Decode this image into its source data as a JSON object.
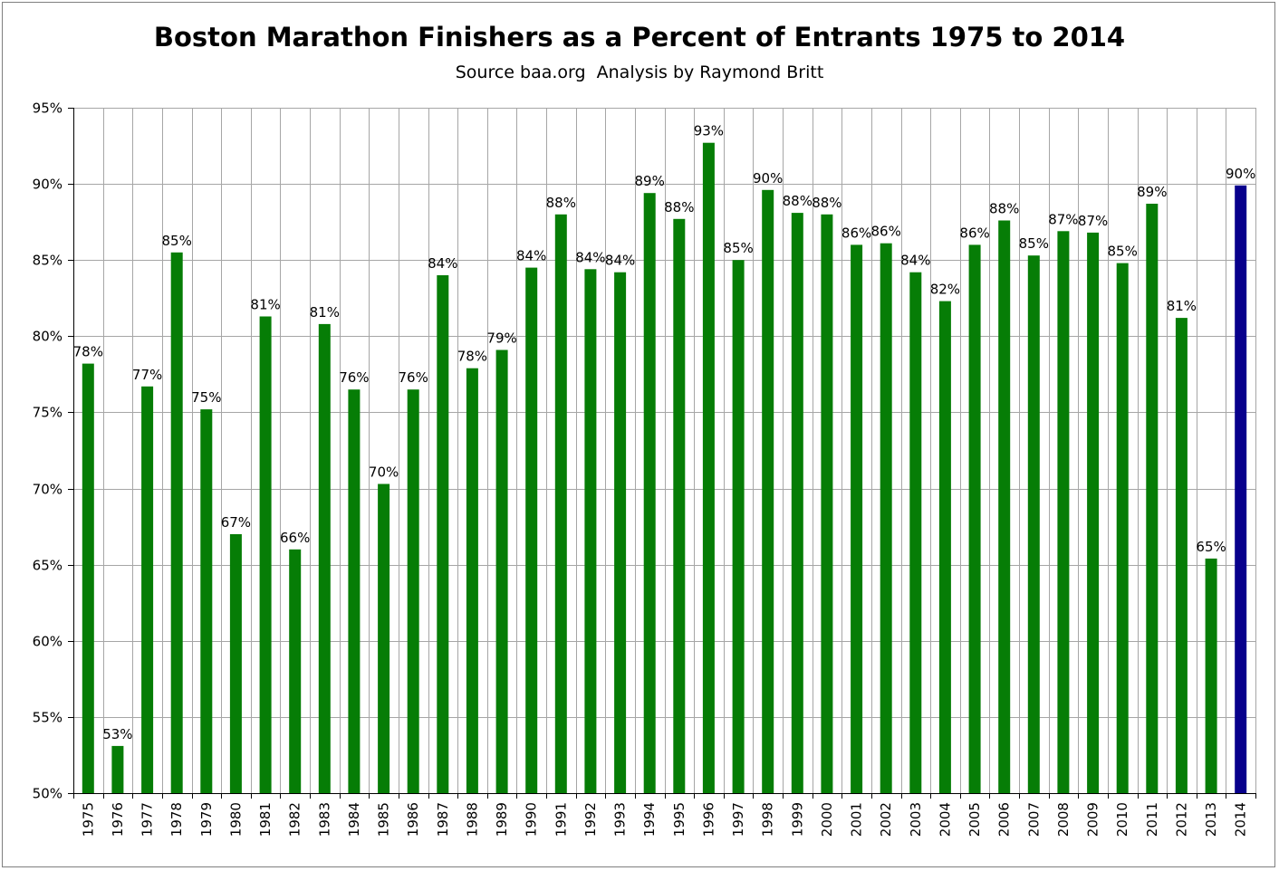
{
  "colors": {
    "bar": "#067d06",
    "highlight_bar": "#08008c",
    "grid": "#a6a6a6",
    "axis": "#000000",
    "frame": "#7f7f7f"
  },
  "chart_data": {
    "type": "bar",
    "title": "Boston Marathon Finishers as a Percent of Entrants 1975 to 2014",
    "subtitle": "Source baa.org  Analysis by Raymond Britt",
    "xlabel": "",
    "ylabel": "",
    "ylim": [
      50,
      95
    ],
    "y_tick_step": 5,
    "y_tick_suffix": "%",
    "grid": true,
    "legend": "none",
    "highlight_category": "2014",
    "categories": [
      "1975",
      "1976",
      "1977",
      "1978",
      "1979",
      "1980",
      "1981",
      "1982",
      "1983",
      "1984",
      "1985",
      "1986",
      "1987",
      "1988",
      "1989",
      "1990",
      "1991",
      "1992",
      "1993",
      "1994",
      "1995",
      "1996",
      "1997",
      "1998",
      "1999",
      "2000",
      "2001",
      "2002",
      "2003",
      "2004",
      "2005",
      "2006",
      "2007",
      "2008",
      "2009",
      "2010",
      "2011",
      "2012",
      "2013",
      "2014"
    ],
    "values": [
      78.2,
      53.1,
      76.7,
      85.5,
      75.2,
      67.0,
      81.3,
      66.0,
      80.8,
      76.5,
      70.3,
      76.5,
      84.0,
      77.9,
      79.1,
      84.5,
      88.0,
      84.4,
      84.2,
      89.4,
      87.7,
      92.7,
      85.0,
      89.6,
      88.1,
      88.0,
      86.0,
      86.1,
      84.2,
      82.3,
      86.0,
      87.6,
      85.3,
      86.9,
      86.8,
      84.8,
      88.7,
      81.2,
      65.4,
      89.9
    ],
    "data_labels": [
      "78%",
      "53%",
      "77%",
      "85%",
      "75%",
      "67%",
      "81%",
      "66%",
      "81%",
      "76%",
      "70%",
      "76%",
      "84%",
      "78%",
      "79%",
      "84%",
      "88%",
      "84%",
      "84%",
      "89%",
      "88%",
      "93%",
      "85%",
      "90%",
      "88%",
      "88%",
      "86%",
      "86%",
      "84%",
      "82%",
      "86%",
      "88%",
      "85%",
      "87%",
      "87%",
      "85%",
      "89%",
      "81%",
      "65%",
      "90%"
    ]
  }
}
